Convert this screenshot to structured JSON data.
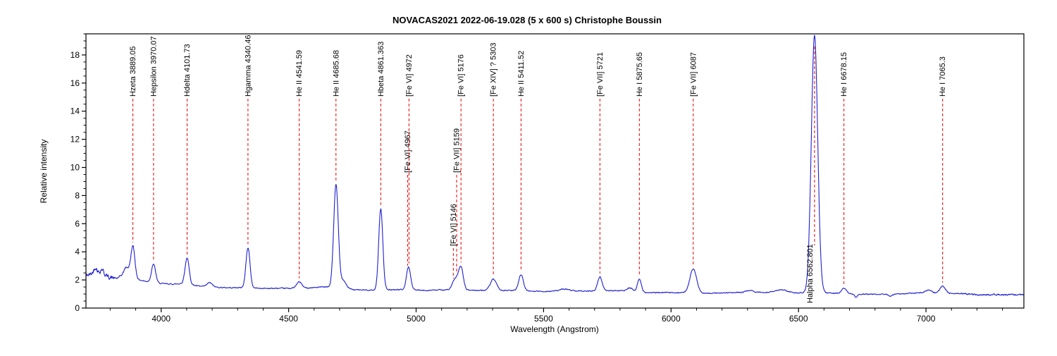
{
  "chart_data": {
    "type": "line",
    "title": "NOVACAS2021  2022-06-19.028 (5 x 600 s)   Christophe Boussin",
    "xlabel": "Wavelength (Angstrom)",
    "ylabel": "Relative intensity",
    "xlim": [
      3705,
      7384
    ],
    "ylim": [
      0,
      19.5
    ],
    "x_major_ticks": [
      4000,
      4500,
      5000,
      5500,
      6000,
      6500,
      7000
    ],
    "x_minor_step": 100,
    "y_major_ticks": [
      0,
      2,
      4,
      6,
      8,
      10,
      12,
      14,
      16,
      18
    ],
    "y_minor_step": 0.5,
    "grid": false,
    "legend": "none",
    "colors": {
      "spectrum": "#1f1fd0",
      "marker": "#e60000",
      "text": "#000000",
      "background": "#ffffff"
    },
    "continuum": [
      [
        3705,
        2.3
      ],
      [
        3730,
        2.45
      ],
      [
        3762,
        2.55
      ],
      [
        3795,
        2.2
      ],
      [
        3825,
        2.1
      ],
      [
        3858,
        2.45
      ],
      [
        3900,
        2.05
      ],
      [
        3940,
        1.9
      ],
      [
        3995,
        1.75
      ],
      [
        4045,
        1.7
      ],
      [
        4090,
        1.75
      ],
      [
        4150,
        1.55
      ],
      [
        4250,
        1.45
      ],
      [
        4330,
        1.45
      ],
      [
        4400,
        1.4
      ],
      [
        4470,
        1.4
      ],
      [
        4560,
        1.42
      ],
      [
        4640,
        1.5
      ],
      [
        4700,
        1.45
      ],
      [
        4760,
        1.3
      ],
      [
        4830,
        1.27
      ],
      [
        4900,
        1.3
      ],
      [
        4960,
        1.32
      ],
      [
        5030,
        1.25
      ],
      [
        5110,
        1.3
      ],
      [
        5210,
        1.27
      ],
      [
        5290,
        1.25
      ],
      [
        5400,
        1.25
      ],
      [
        5500,
        1.18
      ],
      [
        5600,
        1.25
      ],
      [
        5700,
        1.2
      ],
      [
        5800,
        1.25
      ],
      [
        5860,
        1.1
      ],
      [
        5950,
        1.1
      ],
      [
        6050,
        1.1
      ],
      [
        6160,
        1.05
      ],
      [
        6280,
        1.12
      ],
      [
        6400,
        1.1
      ],
      [
        6500,
        1.08
      ],
      [
        6600,
        1.08
      ],
      [
        6700,
        1.02
      ],
      [
        6800,
        0.98
      ],
      [
        6900,
        1.0
      ],
      [
        6980,
        1.1
      ],
      [
        7040,
        1.05
      ],
      [
        7120,
        1.05
      ],
      [
        7200,
        0.95
      ],
      [
        7300,
        0.95
      ],
      [
        7384,
        0.95
      ]
    ],
    "peaks": [
      {
        "wavelength": 3742,
        "amplitude": 0.4,
        "sigma": 6
      },
      {
        "wavelength": 3769,
        "amplitude": 0.3,
        "sigma": 5
      },
      {
        "wavelength": 3865,
        "amplitude": 0.5,
        "sigma": 9
      },
      {
        "wavelength": 3889.05,
        "amplitude": 2.25,
        "sigma": 8
      },
      {
        "wavelength": 3970.07,
        "amplitude": 1.3,
        "sigma": 8
      },
      {
        "wavelength": 4101.73,
        "amplitude": 1.85,
        "sigma": 8
      },
      {
        "wavelength": 4190,
        "amplitude": 0.3,
        "sigma": 10
      },
      {
        "wavelength": 4340.46,
        "amplitude": 2.85,
        "sigma": 8
      },
      {
        "wavelength": 4541.59,
        "amplitude": 0.45,
        "sigma": 10
      },
      {
        "wavelength": 4685.68,
        "amplitude": 7.3,
        "sigma": 9
      },
      {
        "wavelength": 4714,
        "amplitude": 0.55,
        "sigma": 11
      },
      {
        "wavelength": 4861.363,
        "amplitude": 5.8,
        "sigma": 8
      },
      {
        "wavelength": 4967,
        "amplitude": 0.55,
        "sigma": 7
      },
      {
        "wavelength": 4972,
        "amplitude": 1.15,
        "sigma": 8
      },
      {
        "wavelength": 5146,
        "amplitude": 0.4,
        "sigma": 8
      },
      {
        "wavelength": 5159,
        "amplitude": 0.6,
        "sigma": 9
      },
      {
        "wavelength": 5176,
        "amplitude": 1.6,
        "sigma": 9
      },
      {
        "wavelength": 5303,
        "amplitude": 0.8,
        "sigma": 12
      },
      {
        "wavelength": 5411.52,
        "amplitude": 1.15,
        "sigma": 9
      },
      {
        "wavelength": 5580,
        "amplitude": 0.12,
        "sigma": 15
      },
      {
        "wavelength": 5721,
        "amplitude": 1.0,
        "sigma": 9
      },
      {
        "wavelength": 5840,
        "amplitude": 0.28,
        "sigma": 12
      },
      {
        "wavelength": 5875.65,
        "amplitude": 0.95,
        "sigma": 8
      },
      {
        "wavelength": 6087,
        "amplitude": 1.7,
        "sigma": 13
      },
      {
        "wavelength": 6310,
        "amplitude": 0.14,
        "sigma": 14
      },
      {
        "wavelength": 6430,
        "amplitude": 0.2,
        "sigma": 25
      },
      {
        "wavelength": 6562.801,
        "amplitude": 18.3,
        "sigma": 12.5
      },
      {
        "wavelength": 6678.15,
        "amplitude": 0.38,
        "sigma": 9
      },
      {
        "wavelength": 6725,
        "amplitude": -0.22,
        "sigma": 6
      },
      {
        "wavelength": 6860,
        "amplitude": -0.16,
        "sigma": 8
      },
      {
        "wavelength": 7010,
        "amplitude": 0.2,
        "sigma": 12
      },
      {
        "wavelength": 7065.3,
        "amplitude": 0.5,
        "sigma": 11
      }
    ],
    "line_markers": [
      {
        "label": "Hzeta 3889.05",
        "wavelength": 3889.05,
        "tier": "top"
      },
      {
        "label": "Hepsilon 3970.07",
        "wavelength": 3970.07,
        "tier": "top"
      },
      {
        "label": "Hdelta 4101.73",
        "wavelength": 4101.73,
        "tier": "top"
      },
      {
        "label": "Hgamma 4340.46",
        "wavelength": 4340.46,
        "tier": "top"
      },
      {
        "label": "He II 4541.59",
        "wavelength": 4541.59,
        "tier": "top"
      },
      {
        "label": "He II 4685.68",
        "wavelength": 4685.68,
        "tier": "top"
      },
      {
        "label": "Hbeta 4861.363",
        "wavelength": 4861.363,
        "tier": "top"
      },
      {
        "label": "[Fe VI] 4967",
        "wavelength": 4967,
        "tier": "mid"
      },
      {
        "label": "[Fe VI] 4972",
        "wavelength": 4972,
        "tier": "top"
      },
      {
        "label": "[Fe VI] 5146",
        "wavelength": 5146,
        "tier": "low"
      },
      {
        "label": "[Fe VII] 5159",
        "wavelength": 5159,
        "tier": "mid"
      },
      {
        "label": "[Fe VI] 5176",
        "wavelength": 5176,
        "tier": "top"
      },
      {
        "label": "[Fe XIV] ? 5303",
        "wavelength": 5303,
        "tier": "top"
      },
      {
        "label": "He II 5411.52",
        "wavelength": 5411.52,
        "tier": "top"
      },
      {
        "label": "[Fe VII] 5721",
        "wavelength": 5721,
        "tier": "top"
      },
      {
        "label": "He I 5875.65",
        "wavelength": 5875.65,
        "tier": "top"
      },
      {
        "label": "[Fe VII] 6087",
        "wavelength": 6087,
        "tier": "top"
      },
      {
        "label": "Halpha 6562.801",
        "wavelength": 6562.801,
        "tier": "halpha"
      },
      {
        "label": "He I 6678.15",
        "wavelength": 6678.15,
        "tier": "top"
      },
      {
        "label": "He I 7065.3",
        "wavelength": 7065.3,
        "tier": "top"
      }
    ],
    "noise": {
      "seed": 42,
      "base": 0.032,
      "blue_region": 0.13,
      "red_region": 0.05
    }
  }
}
